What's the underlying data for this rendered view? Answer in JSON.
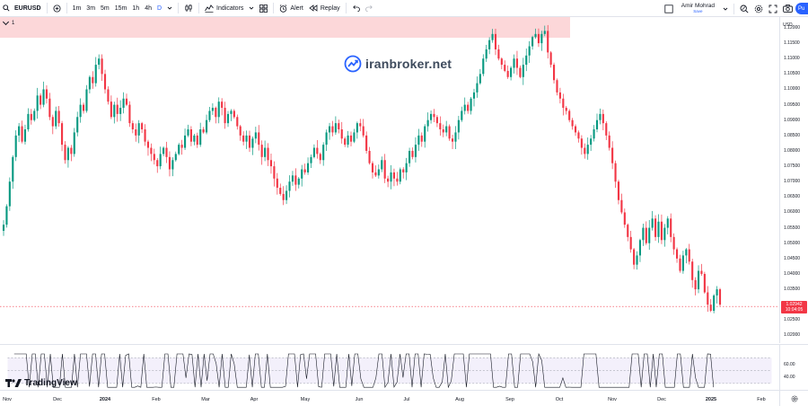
{
  "toolbar": {
    "symbol": "EURUSD",
    "intervals": [
      "1m",
      "3m",
      "5m",
      "15m",
      "1h",
      "4h",
      "D"
    ],
    "active_interval": "D",
    "indicators_label": "Indicators",
    "alert_label": "Alert",
    "replay_label": "Replay",
    "user_name": "Amir Mohrad",
    "user_status": "Save",
    "publish_label": "Pu"
  },
  "legend": {
    "pane_index": "1"
  },
  "watermark": {
    "text": "iranbroker.net"
  },
  "branding": {
    "logo_text": "TradingView"
  },
  "price_axis": {
    "currency": "USD",
    "ticks": [
      "1.12000",
      "1.11500",
      "1.11000",
      "1.10500",
      "1.10000",
      "1.09500",
      "1.09000",
      "1.08500",
      "1.08000",
      "1.07500",
      "1.07000",
      "1.06500",
      "1.06000",
      "1.05500",
      "1.05000",
      "1.04500",
      "1.04000",
      "1.03500",
      "1.03000",
      "1.02500",
      "1.02000"
    ],
    "last_price": "1.02942",
    "countdown": "10:04:05"
  },
  "oscillator": {
    "ticks": [
      "60.00",
      "40.00"
    ],
    "upper_level": 70,
    "lower_level": 30
  },
  "time_axis": {
    "labels": [
      "Nov",
      "Dec",
      "2024",
      "Feb",
      "Mar",
      "Apr",
      "May",
      "Jun",
      "Jul",
      "Aug",
      "Sep",
      "Oct",
      "Nov",
      "Dec",
      "2025",
      "Feb"
    ],
    "bold_labels": [
      "2024",
      "2025"
    ]
  },
  "colors": {
    "up": "#089981",
    "down": "#f23645",
    "session_band": "#fcd7d9",
    "accent": "#2962ff"
  },
  "chart_data": {
    "type": "candlestick",
    "symbol": "EURUSD",
    "interval": "D",
    "ylim": [
      1.0175,
      1.1235
    ],
    "closes": [
      1.056,
      1.062,
      1.07,
      1.078,
      1.085,
      1.088,
      1.083,
      1.087,
      1.092,
      1.09,
      1.093,
      1.098,
      1.095,
      1.1,
      1.097,
      1.091,
      1.088,
      1.093,
      1.089,
      1.082,
      1.077,
      1.081,
      1.079,
      1.086,
      1.091,
      1.095,
      1.093,
      1.1,
      1.104,
      1.102,
      1.108,
      1.11,
      1.105,
      1.1,
      1.096,
      1.091,
      1.095,
      1.092,
      1.094,
      1.097,
      1.095,
      1.089,
      1.087,
      1.085,
      1.089,
      1.087,
      1.083,
      1.081,
      1.079,
      1.077,
      1.075,
      1.079,
      1.081,
      1.078,
      1.074,
      1.077,
      1.079,
      1.082,
      1.081,
      1.085,
      1.087,
      1.083,
      1.085,
      1.082,
      1.087,
      1.086,
      1.09,
      1.093,
      1.094,
      1.091,
      1.096,
      1.094,
      1.089,
      1.092,
      1.093,
      1.091,
      1.088,
      1.085,
      1.083,
      1.085,
      1.081,
      1.084,
      1.086,
      1.082,
      1.078,
      1.081,
      1.077,
      1.075,
      1.071,
      1.068,
      1.066,
      1.064,
      1.067,
      1.07,
      1.072,
      1.069,
      1.071,
      1.074,
      1.073,
      1.076,
      1.078,
      1.081,
      1.079,
      1.077,
      1.082,
      1.086,
      1.088,
      1.086,
      1.089,
      1.087,
      1.084,
      1.082,
      1.085,
      1.083,
      1.086,
      1.089,
      1.088,
      1.085,
      1.08,
      1.076,
      1.073,
      1.072,
      1.074,
      1.077,
      1.071,
      1.07,
      1.073,
      1.071,
      1.07,
      1.074,
      1.073,
      1.076,
      1.08,
      1.078,
      1.082,
      1.085,
      1.083,
      1.088,
      1.09,
      1.092,
      1.091,
      1.089,
      1.087,
      1.086,
      1.088,
      1.084,
      1.083,
      1.086,
      1.09,
      1.093,
      1.095,
      1.093,
      1.097,
      1.099,
      1.102,
      1.105,
      1.11,
      1.113,
      1.116,
      1.118,
      1.113,
      1.11,
      1.108,
      1.106,
      1.104,
      1.107,
      1.11,
      1.107,
      1.104,
      1.108,
      1.111,
      1.114,
      1.117,
      1.118,
      1.115,
      1.118,
      1.119,
      1.112,
      1.108,
      1.103,
      1.099,
      1.097,
      1.094,
      1.093,
      1.09,
      1.088,
      1.086,
      1.084,
      1.081,
      1.079,
      1.082,
      1.084,
      1.087,
      1.09,
      1.092,
      1.089,
      1.085,
      1.081,
      1.076,
      1.07,
      1.064,
      1.06,
      1.056,
      1.052,
      1.048,
      1.043,
      1.046,
      1.051,
      1.055,
      1.05,
      1.055,
      1.058,
      1.052,
      1.057,
      1.051,
      1.055,
      1.058,
      1.052,
      1.048,
      1.045,
      1.041,
      1.046,
      1.048,
      1.044,
      1.038,
      1.035,
      1.041,
      1.04,
      1.034,
      1.03,
      1.028,
      1.033,
      1.035,
      1.03
    ]
  }
}
